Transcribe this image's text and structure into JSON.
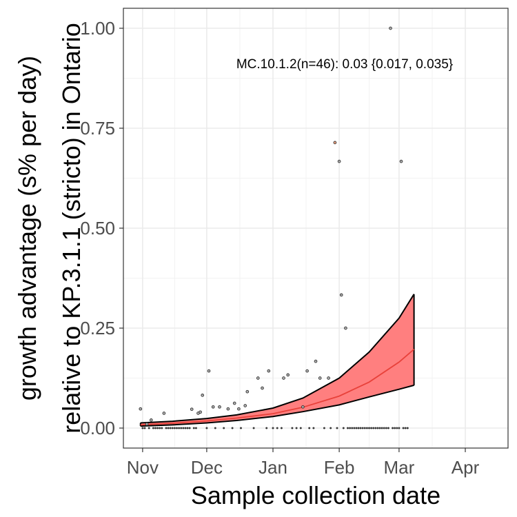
{
  "chart_data": {
    "type": "scatter",
    "title": "",
    "xlabel": "Sample collection date",
    "ylabel_lines": [
      "growth advantage (s% per day)",
      "relative to KP.3.1.1 (stricto) in Ontario"
    ],
    "annotation": "MC.10.1.2(n=46): 0.03 {0.017, 0.035}",
    "x_axis": {
      "type": "date",
      "range": [
        "2024-10-23",
        "2025-04-21"
      ],
      "ticks": [
        {
          "date": "2024-11-01",
          "label": "Nov"
        },
        {
          "date": "2024-12-01",
          "label": "Dec"
        },
        {
          "date": "2025-01-01",
          "label": "Jan"
        },
        {
          "date": "2025-02-01",
          "label": "Feb"
        },
        {
          "date": "2025-03-01",
          "label": "Mar"
        },
        {
          "date": "2025-04-01",
          "label": "Apr"
        }
      ]
    },
    "y_axis": {
      "range": [
        -0.05,
        1.05
      ],
      "ticks": [
        {
          "value": 0.0,
          "label": "0.00"
        },
        {
          "value": 0.25,
          "label": "0.25"
        },
        {
          "value": 0.5,
          "label": "0.50"
        },
        {
          "value": 0.75,
          "label": "0.75"
        },
        {
          "value": 1.0,
          "label": "1.00"
        }
      ]
    },
    "grid": true,
    "colors": {
      "fit_line": "#f8766d",
      "ribbon_fill": "#ff7f7f",
      "ribbon_edge": "#000000",
      "point_outline": "#333333",
      "point_fill_highlight": "#f4a582"
    },
    "points": [
      {
        "x": "2024-10-31",
        "y": 0.048
      },
      {
        "x": "2024-11-01",
        "y": 0.0
      },
      {
        "x": "2024-11-02",
        "y": 0.0
      },
      {
        "x": "2024-11-03",
        "y": 0.01
      },
      {
        "x": "2024-11-04",
        "y": 0.0
      },
      {
        "x": "2024-11-05",
        "y": 0.02
      },
      {
        "x": "2024-11-06",
        "y": 0.0
      },
      {
        "x": "2024-11-07",
        "y": 0.0
      },
      {
        "x": "2024-11-08",
        "y": 0.0
      },
      {
        "x": "2024-11-09",
        "y": 0.0
      },
      {
        "x": "2024-11-10",
        "y": 0.0
      },
      {
        "x": "2024-11-11",
        "y": 0.037
      },
      {
        "x": "2024-11-12",
        "y": 0.0
      },
      {
        "x": "2024-11-13",
        "y": 0.0
      },
      {
        "x": "2024-11-14",
        "y": 0.0
      },
      {
        "x": "2024-11-15",
        "y": 0.0
      },
      {
        "x": "2024-11-16",
        "y": 0.0
      },
      {
        "x": "2024-11-17",
        "y": 0.0
      },
      {
        "x": "2024-11-18",
        "y": 0.0
      },
      {
        "x": "2024-11-19",
        "y": 0.0
      },
      {
        "x": "2024-11-20",
        "y": 0.0
      },
      {
        "x": "2024-11-21",
        "y": 0.0
      },
      {
        "x": "2024-11-22",
        "y": 0.0
      },
      {
        "x": "2024-11-23",
        "y": 0.0
      },
      {
        "x": "2024-11-24",
        "y": 0.047
      },
      {
        "x": "2024-11-25",
        "y": 0.0
      },
      {
        "x": "2024-11-26",
        "y": 0.0
      },
      {
        "x": "2024-11-27",
        "y": 0.037
      },
      {
        "x": "2024-11-28",
        "y": 0.04
      },
      {
        "x": "2024-11-29",
        "y": 0.082
      },
      {
        "x": "2024-12-01",
        "y": 0.0
      },
      {
        "x": "2024-12-02",
        "y": 0.143
      },
      {
        "x": "2024-12-04",
        "y": 0.053
      },
      {
        "x": "2024-12-05",
        "y": 0.0
      },
      {
        "x": "2024-12-07",
        "y": 0.053
      },
      {
        "x": "2024-12-09",
        "y": 0.0
      },
      {
        "x": "2024-12-11",
        "y": 0.048
      },
      {
        "x": "2024-12-13",
        "y": 0.0
      },
      {
        "x": "2024-12-14",
        "y": 0.062
      },
      {
        "x": "2024-12-16",
        "y": 0.048
      },
      {
        "x": "2024-12-17",
        "y": 0.0
      },
      {
        "x": "2024-12-19",
        "y": 0.056
      },
      {
        "x": "2024-12-20",
        "y": 0.091
      },
      {
        "x": "2024-12-23",
        "y": 0.0
      },
      {
        "x": "2024-12-25",
        "y": 0.125
      },
      {
        "x": "2024-12-27",
        "y": 0.1
      },
      {
        "x": "2024-12-29",
        "y": 0.0
      },
      {
        "x": "2024-12-30",
        "y": 0.143
      },
      {
        "x": "2025-01-01",
        "y": 0.0
      },
      {
        "x": "2025-01-03",
        "y": 0.0
      },
      {
        "x": "2025-01-05",
        "y": 0.0
      },
      {
        "x": "2025-01-06",
        "y": 0.125
      },
      {
        "x": "2025-01-08",
        "y": 0.133
      },
      {
        "x": "2025-01-10",
        "y": 0.0
      },
      {
        "x": "2025-01-12",
        "y": 0.0
      },
      {
        "x": "2025-01-14",
        "y": 0.0
      },
      {
        "x": "2025-01-15",
        "y": 0.053
      },
      {
        "x": "2025-01-17",
        "y": 0.143
      },
      {
        "x": "2025-01-18",
        "y": 0.0
      },
      {
        "x": "2025-01-20",
        "y": 0.0
      },
      {
        "x": "2025-01-21",
        "y": 0.167
      },
      {
        "x": "2025-01-23",
        "y": 0.125
      },
      {
        "x": "2025-01-25",
        "y": 0.0
      },
      {
        "x": "2025-01-27",
        "y": 0.125
      },
      {
        "x": "2025-01-28",
        "y": 0.0
      },
      {
        "x": "2025-01-30",
        "y": 0.714,
        "highlight": true
      },
      {
        "x": "2025-01-31",
        "y": 0.0
      },
      {
        "x": "2025-02-01",
        "y": 0.667
      },
      {
        "x": "2025-02-02",
        "y": 0.333
      },
      {
        "x": "2025-02-03",
        "y": 0.0
      },
      {
        "x": "2025-02-04",
        "y": 0.25
      },
      {
        "x": "2025-02-05",
        "y": 0.0
      },
      {
        "x": "2025-02-06",
        "y": 0.0
      },
      {
        "x": "2025-02-07",
        "y": 0.0
      },
      {
        "x": "2025-02-08",
        "y": 0.0
      },
      {
        "x": "2025-02-09",
        "y": 0.0
      },
      {
        "x": "2025-02-10",
        "y": 0.0
      },
      {
        "x": "2025-02-11",
        "y": 0.0
      },
      {
        "x": "2025-02-12",
        "y": 0.0
      },
      {
        "x": "2025-02-13",
        "y": 0.0
      },
      {
        "x": "2025-02-14",
        "y": 0.0
      },
      {
        "x": "2025-02-15",
        "y": 0.0
      },
      {
        "x": "2025-02-16",
        "y": 0.0
      },
      {
        "x": "2025-02-17",
        "y": 0.0
      },
      {
        "x": "2025-02-18",
        "y": 0.0
      },
      {
        "x": "2025-02-19",
        "y": 0.0
      },
      {
        "x": "2025-02-20",
        "y": 0.0
      },
      {
        "x": "2025-02-21",
        "y": 0.0
      },
      {
        "x": "2025-02-22",
        "y": 0.0
      },
      {
        "x": "2025-02-23",
        "y": 0.0
      },
      {
        "x": "2025-02-24",
        "y": 0.0
      },
      {
        "x": "2025-02-25",
        "y": 1.0
      },
      {
        "x": "2025-02-26",
        "y": 0.0
      },
      {
        "x": "2025-02-27",
        "y": 0.0
      },
      {
        "x": "2025-02-28",
        "y": 0.0
      },
      {
        "x": "2025-03-01",
        "y": 0.0
      },
      {
        "x": "2025-03-02",
        "y": 0.667
      },
      {
        "x": "2025-03-03",
        "y": 0.0
      },
      {
        "x": "2025-03-04",
        "y": 0.0
      },
      {
        "x": "2025-03-05",
        "y": 0.0
      }
    ],
    "fit": [
      {
        "x": "2024-10-31",
        "y": 0.008,
        "lo": 0.005,
        "hi": 0.013
      },
      {
        "x": "2024-11-15",
        "y": 0.012,
        "lo": 0.008,
        "hi": 0.017
      },
      {
        "x": "2024-12-01",
        "y": 0.018,
        "lo": 0.013,
        "hi": 0.024
      },
      {
        "x": "2024-12-15",
        "y": 0.025,
        "lo": 0.019,
        "hi": 0.033
      },
      {
        "x": "2025-01-01",
        "y": 0.036,
        "lo": 0.029,
        "hi": 0.05
      },
      {
        "x": "2025-01-15",
        "y": 0.052,
        "lo": 0.041,
        "hi": 0.075
      },
      {
        "x": "2025-02-01",
        "y": 0.08,
        "lo": 0.058,
        "hi": 0.125
      },
      {
        "x": "2025-02-15",
        "y": 0.115,
        "lo": 0.078,
        "hi": 0.19
      },
      {
        "x": "2025-03-01",
        "y": 0.165,
        "lo": 0.097,
        "hi": 0.275
      },
      {
        "x": "2025-03-08",
        "y": 0.197,
        "lo": 0.107,
        "hi": 0.335
      }
    ]
  }
}
